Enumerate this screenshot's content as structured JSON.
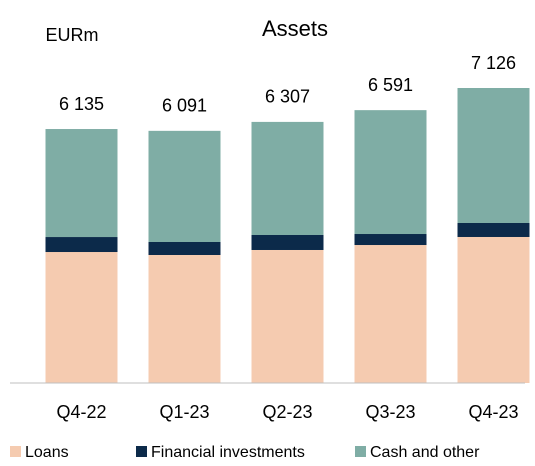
{
  "chart_data": {
    "type": "stacked_bar",
    "title": "Assets",
    "unit_label": "EURm",
    "categories": [
      "Q4-22",
      "Q1-23",
      "Q2-23",
      "Q3-23",
      "Q4-23"
    ],
    "series": [
      {
        "name": "Loans",
        "color": "#f5cbb0",
        "values": [
          3164,
          3092,
          3213,
          3333,
          3527
        ]
      },
      {
        "name": "Financial investments",
        "color": "#0c2a4a",
        "values": [
          362,
          314,
          362,
          266,
          338
        ]
      },
      {
        "name": "Cash and other",
        "color": "#7fada5",
        "values": [
          2609,
          2685,
          2732,
          2992,
          3261
        ]
      }
    ],
    "totals": {
      "values": [
        6135,
        6091,
        6307,
        6591,
        7126
      ],
      "value_labels": [
        "6 135",
        "6 091",
        "6 307",
        "6 591",
        "7 126"
      ]
    },
    "legend": "bottom"
  }
}
